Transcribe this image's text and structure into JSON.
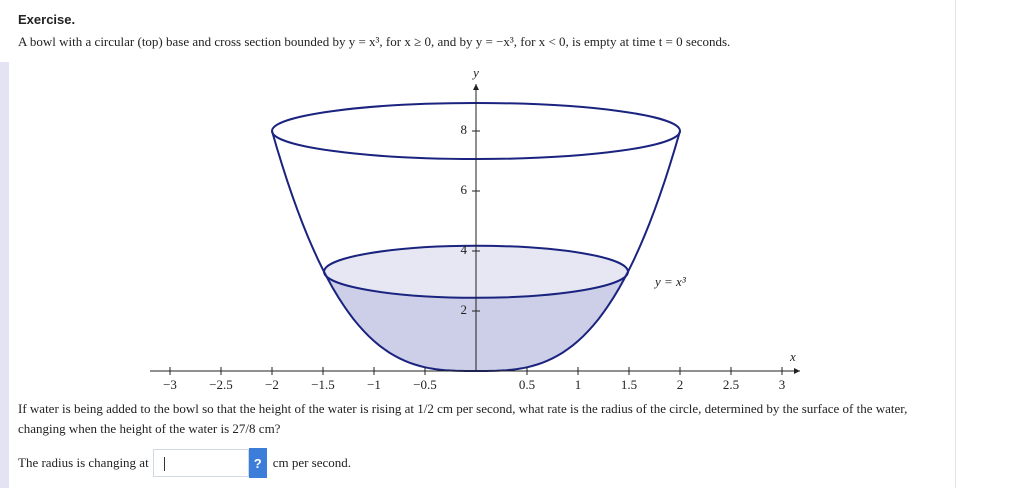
{
  "header": {
    "title": "Exercise.",
    "intro": "A bowl with a circular (top) base and cross section bounded by y = x³, for x ≥ 0, and by y = −x³, for x < 0, is empty at time t = 0 seconds."
  },
  "figure": {
    "x_axis_label": "x",
    "y_axis_label": "y",
    "curve_label": "y = x³",
    "x_ticks": [
      "−3",
      "−2.5",
      "−2",
      "−1.5",
      "−1",
      "−0.5",
      "0.5",
      "1",
      "1.5",
      "2",
      "2.5",
      "3"
    ],
    "y_ticks": [
      "2",
      "4",
      "6",
      "8"
    ]
  },
  "question": "If water is being added to the bowl so that the height of the water is rising at 1/2 cm per second, what rate is the radius of the circle, determined by the surface of the water, changing when the height of the water is 27/8 cm?",
  "answer": {
    "prefix": "The radius is changing at",
    "help": "?",
    "suffix": "cm per second."
  }
}
